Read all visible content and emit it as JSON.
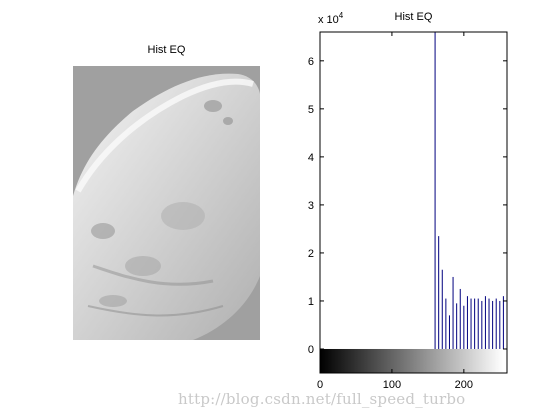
{
  "left_panel": {
    "title": "Hist EQ"
  },
  "watermark": "http://blog.csdn.net/full_speed_turbo",
  "chart_data": {
    "type": "bar",
    "title": "Hist EQ",
    "xlabel": "",
    "ylabel": "",
    "exponent_label_base": "x 10",
    "exponent_label_power": "4",
    "xlim": [
      0,
      260
    ],
    "ylim": [
      -0.5,
      6.6
    ],
    "y_scale_factor": 10000,
    "xticks": [
      0,
      100,
      200
    ],
    "yticks": [
      0,
      1,
      2,
      3,
      4,
      5,
      6
    ],
    "bar_color": "#00007f",
    "grayscale_bar": {
      "from": 0,
      "to": 255,
      "ymin": -0.5,
      "ymax": 0
    },
    "series": [
      {
        "x": [
          160,
          165,
          170,
          175,
          180,
          185,
          190,
          195,
          200,
          205,
          210,
          215,
          220,
          225,
          230,
          235,
          240,
          245,
          250,
          255
        ],
        "values": [
          6.6,
          2.35,
          1.65,
          1.05,
          0.7,
          1.5,
          0.95,
          1.25,
          0.9,
          1.1,
          1.05,
          1.05,
          1.05,
          1.0,
          1.1,
          1.05,
          1.0,
          1.05,
          1.0,
          1.1
        ]
      }
    ]
  }
}
